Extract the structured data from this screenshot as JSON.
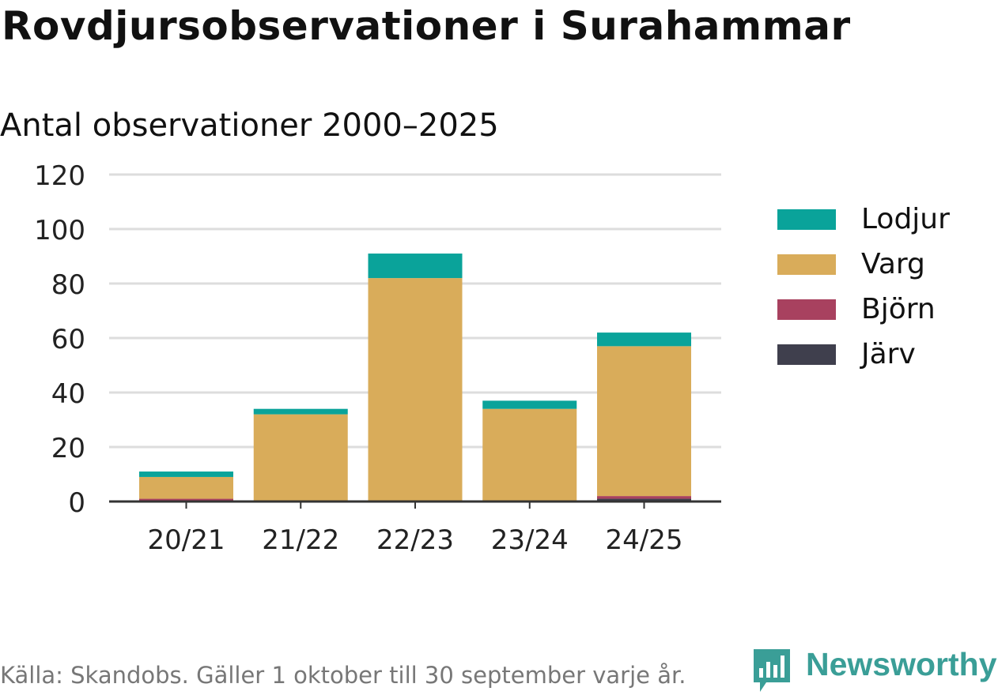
{
  "title": "Rovdjursobservationer i Surahammar",
  "subtitle": "Antal observationer 2000–2025",
  "source": "Källa: Skandobs. Gäller 1 oktober till 30 september varje år.",
  "logo": {
    "text": "Newsworthy",
    "icon": "newsworthy-logo-icon"
  },
  "colors": {
    "Lodjur": "#0aa39a",
    "Varg": "#d9ac5a",
    "Björn": "#a8415f",
    "Järv": "#3f3f4d",
    "grid": "#dddddd",
    "axis": "#333333",
    "tick_text": "#222222"
  },
  "chart_data": {
    "type": "bar",
    "stacked": true,
    "title": "Rovdjursobservationer i Surahammar",
    "subtitle": "Antal observationer 2000–2025",
    "xlabel": "",
    "ylabel": "",
    "ylim": [
      0,
      120
    ],
    "yticks": [
      0,
      20,
      40,
      60,
      80,
      100,
      120
    ],
    "grid": true,
    "legend_position": "right",
    "categories": [
      "20/21",
      "21/22",
      "22/23",
      "23/24",
      "24/25"
    ],
    "series": [
      {
        "name": "Järv",
        "values": [
          0,
          0,
          0,
          0,
          1
        ]
      },
      {
        "name": "Björn",
        "values": [
          1,
          0,
          0,
          0,
          1
        ]
      },
      {
        "name": "Varg",
        "values": [
          8,
          32,
          82,
          34,
          55
        ]
      },
      {
        "name": "Lodjur",
        "values": [
          2,
          2,
          9,
          3,
          5
        ]
      }
    ]
  },
  "legend": {
    "items": [
      {
        "label": "Lodjur",
        "color": "#0aa39a"
      },
      {
        "label": "Varg",
        "color": "#d9ac5a"
      },
      {
        "label": "Björn",
        "color": "#a8415f"
      },
      {
        "label": "Järv",
        "color": "#3f3f4d"
      }
    ]
  }
}
